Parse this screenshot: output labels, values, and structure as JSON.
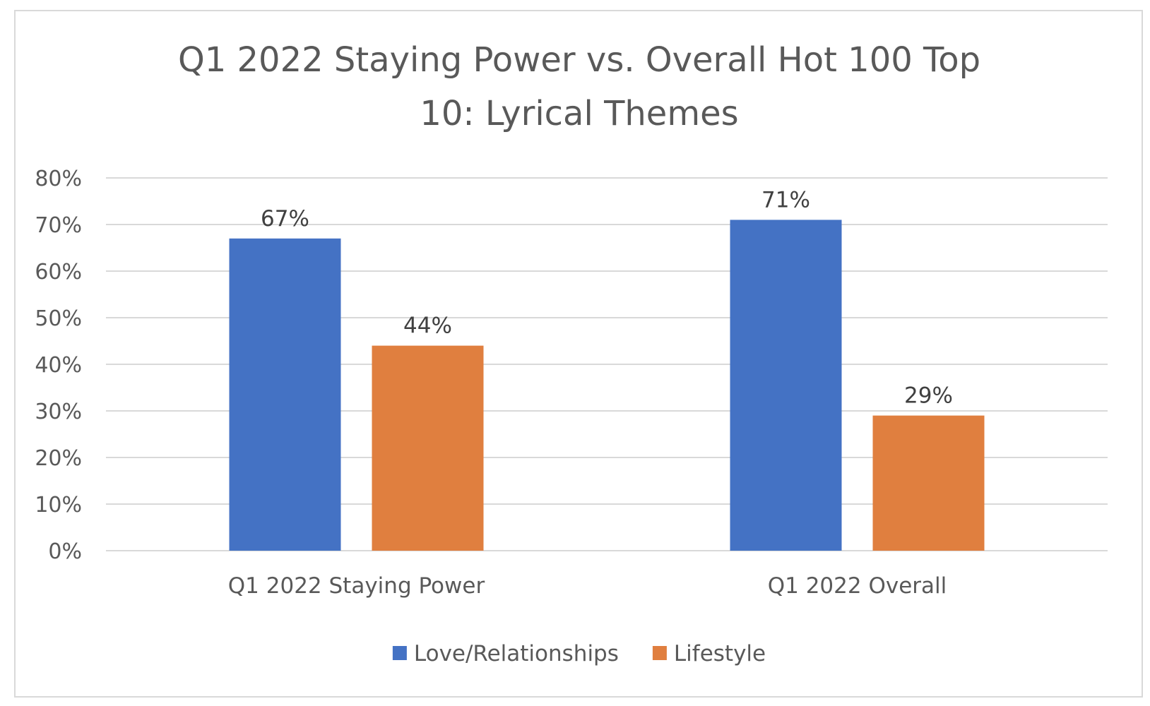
{
  "chart_data": {
    "type": "bar",
    "title_lines": [
      "Q1 2022 Staying Power vs. Overall Hot 100 Top",
      "10: Lyrical Themes"
    ],
    "categories": [
      "Q1 2022 Staying Power",
      "Q1 2022 Overall"
    ],
    "series": [
      {
        "name": "Love/Relationships",
        "color": "#4472c4",
        "values": [
          67,
          71
        ],
        "labels": [
          "67%",
          "71%"
        ]
      },
      {
        "name": "Lifestyle",
        "color": "#e07f3f",
        "values": [
          44,
          29
        ],
        "labels": [
          "44%",
          "29%"
        ]
      }
    ],
    "ylim": [
      0,
      80
    ],
    "yticks": [
      0,
      10,
      20,
      30,
      40,
      50,
      60,
      70,
      80
    ],
    "ytick_labels": [
      "0%",
      "10%",
      "20%",
      "30%",
      "40%",
      "50%",
      "60%",
      "70%",
      "80%"
    ],
    "grid": true,
    "legend_position": "bottom"
  }
}
